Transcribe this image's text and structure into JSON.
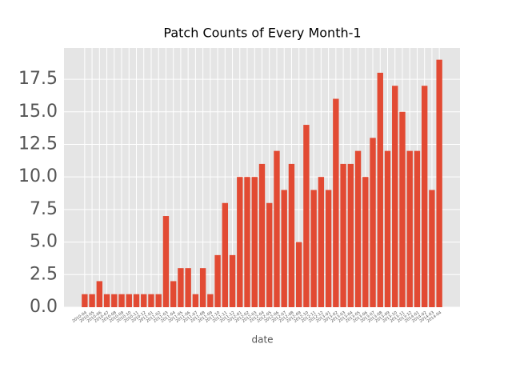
{
  "chart_data": {
    "type": "bar",
    "title": "Patch Counts of Every Month-1",
    "xlabel": "date",
    "categories": [
      "2010-04",
      "2010-05",
      "2010-06",
      "2010-07",
      "2010-08",
      "2010-09",
      "2010-10",
      "2010-11",
      "2010-12",
      "2011-01",
      "2011-02",
      "2011-03",
      "2011-04",
      "2011-05",
      "2011-06",
      "2011-07",
      "2011-08",
      "2011-09",
      "2011-10",
      "2011-11",
      "2011-12",
      "2012-01",
      "2012-02",
      "2012-03",
      "2012-04",
      "2012-05",
      "2012-06",
      "2012-07",
      "2012-08",
      "2012-09",
      "2012-10",
      "2012-11",
      "2012-12",
      "2013-01",
      "2013-02",
      "2013-03",
      "2013-04",
      "2013-05",
      "2013-06",
      "2013-07",
      "2013-08",
      "2013-09",
      "2013-10",
      "2013-11",
      "2013-12",
      "2014-01",
      "2014-02",
      "2014-03",
      "2014-04"
    ],
    "values": [
      1,
      1,
      2,
      1,
      1,
      1,
      1,
      1,
      1,
      1,
      1,
      7,
      2,
      3,
      3,
      1,
      3,
      1,
      4,
      8,
      4,
      10,
      10,
      10,
      11,
      8,
      12,
      9,
      11,
      5,
      14,
      9,
      10,
      9,
      16,
      11,
      11,
      12,
      10,
      13,
      18,
      12,
      17,
      15,
      12,
      12,
      17,
      9,
      19
    ],
    "color": "#e24a33",
    "ylim": [
      0,
      19.9
    ],
    "yticks": [
      {
        "value": 0,
        "label": "0.0"
      },
      {
        "value": 2.5,
        "label": "2.5"
      },
      {
        "value": 5,
        "label": "5.0"
      },
      {
        "value": 7.5,
        "label": "7.5"
      },
      {
        "value": 10,
        "label": "10.0"
      },
      {
        "value": 12.5,
        "label": "12.5"
      },
      {
        "value": 15,
        "label": "15.0"
      },
      {
        "value": 17.5,
        "label": "17.5"
      }
    ],
    "grid": true
  }
}
